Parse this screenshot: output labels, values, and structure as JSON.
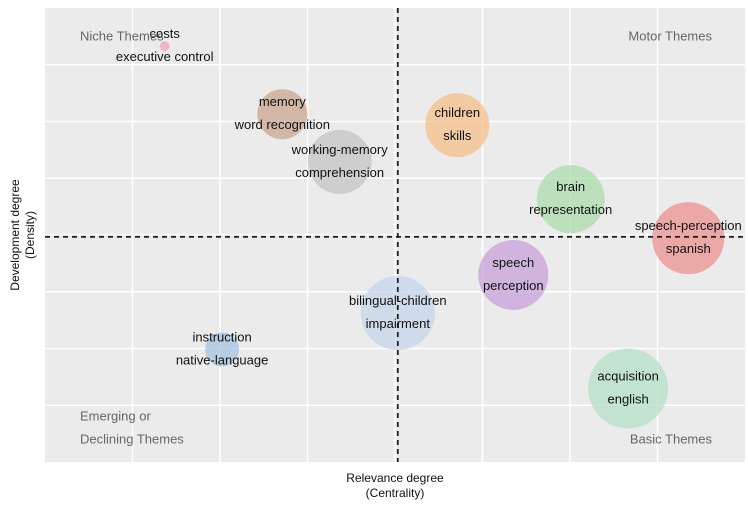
{
  "chart_data": {
    "type": "bubble",
    "x_label": [
      "Relevance degree",
      "(Centrality)"
    ],
    "y_label": [
      "Development degree",
      "(Density)"
    ],
    "quadrants": {
      "top_left": [
        "Niche Themes"
      ],
      "top_right": [
        "Motor Themes"
      ],
      "bottom_left": [
        "Emerging or",
        "Declining Themes"
      ],
      "bottom_right": [
        "Basic Themes"
      ]
    },
    "xlim": [
      0,
      100
    ],
    "ylim": [
      0,
      100
    ],
    "x_mean": 50.4,
    "y_mean": 49.6,
    "grid": true,
    "points": [
      {
        "labels": [
          "costs",
          "executive control"
        ],
        "x": 17.1,
        "y": 91.6,
        "size": 5,
        "color": "#f2a7b8"
      },
      {
        "labels": [
          "memory",
          "word recognition"
        ],
        "x": 33.9,
        "y": 76.6,
        "size": 25,
        "color": "#c9a58f"
      },
      {
        "labels": [
          "children",
          "skills"
        ],
        "x": 58.9,
        "y": 74.2,
        "size": 32,
        "color": "#f6c08a"
      },
      {
        "labels": [
          "working-memory",
          "comprehension"
        ],
        "x": 42.1,
        "y": 66.1,
        "size": 32,
        "color": "#c4c4c4"
      },
      {
        "labels": [
          "brain",
          "representation"
        ],
        "x": 75.1,
        "y": 57.9,
        "size": 34,
        "color": "#acdcac"
      },
      {
        "labels": [
          "speech-perception",
          "spanish"
        ],
        "x": 91.9,
        "y": 49.3,
        "size": 36,
        "color": "#ec9090"
      },
      {
        "labels": [
          "speech",
          "perception"
        ],
        "x": 66.9,
        "y": 41.2,
        "size": 35,
        "color": "#c7a2d8"
      },
      {
        "labels": [
          "bilingual-children",
          "impairment"
        ],
        "x": 50.4,
        "y": 32.8,
        "size": 37,
        "color": "#c6d4ea"
      },
      {
        "labels": [
          "instruction",
          "native-language"
        ],
        "x": 25.3,
        "y": 24.8,
        "size": 17,
        "color": "#a6c3e2"
      },
      {
        "labels": [
          "acquisition",
          "english"
        ],
        "x": 83.3,
        "y": 16.2,
        "size": 40,
        "color": "#b6e0c8"
      }
    ]
  }
}
